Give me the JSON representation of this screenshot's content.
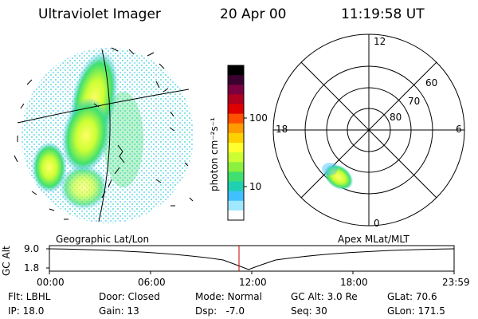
{
  "header": {
    "title": "Ultraviolet Imager",
    "date": "20 Apr 00",
    "time": "11:19:58 UT"
  },
  "colorbar": {
    "unit_label": "photon cm⁻²s⁻¹",
    "ticks": [
      "100",
      "10"
    ],
    "colors": [
      "#000000",
      "#3a0030",
      "#7a0040",
      "#b00020",
      "#e00000",
      "#ff5000",
      "#ff9a00",
      "#ffd000",
      "#ffff30",
      "#ccff33",
      "#8cf040",
      "#40e070",
      "#20d0b0",
      "#40c0ff",
      "#a0e8ff",
      "#ffffff"
    ]
  },
  "polar": {
    "mlt_labels": [
      "12",
      "18",
      "6",
      "0"
    ],
    "mlat_labels": [
      "60",
      "70",
      "80"
    ]
  },
  "panel_labels": {
    "left": "Geographic Lat/Lon",
    "right": "Apex MLat/MLT"
  },
  "gc_alt": {
    "axis_label": "GC Alt",
    "y_ticks": [
      "9.0",
      "1.8"
    ],
    "x_ticks": [
      "00:00",
      "06:00",
      "12:00",
      "18:00",
      "23:59"
    ]
  },
  "footer": {
    "row1": [
      "Flt: LBHL",
      "Door: Closed",
      "Mode: Normal",
      "GC Alt: 3.0 Re",
      "GLat: 70.6"
    ],
    "row2": [
      "IP: 18.0",
      "Gain: 13",
      "Dsp:   -7.0",
      "Seq: 30",
      "GLon: 171.5"
    ]
  }
}
